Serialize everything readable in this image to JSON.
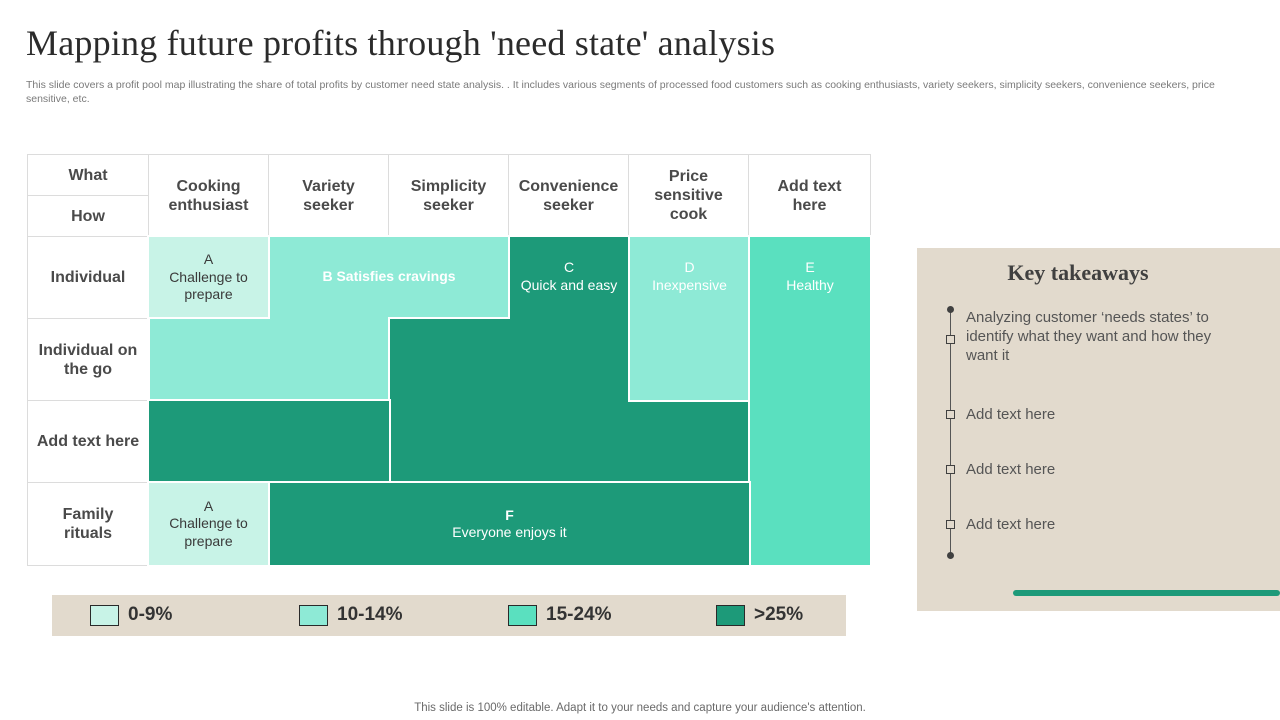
{
  "title": "Mapping future profits through 'need state' analysis",
  "subtitle": "This slide covers a profit pool map illustrating the share of total profits by customer need state analysis. . It includes various segments of processed food customers such as cooking enthusiasts, variety seekers, simplicity seekers, convenience seekers, price sensitive, etc.",
  "grid": {
    "corner_what": "What",
    "corner_how": "How",
    "columns": [
      "Cooking enthusiast",
      "Variety seeker",
      "Simplicity seeker",
      "Convenience seeker",
      "Price sensitive cook",
      "Add text here"
    ],
    "rows": [
      "Individual",
      "Individual on the go",
      "Add text here",
      "Family rituals"
    ],
    "regions": {
      "a_top": {
        "letter": "A",
        "text": "Challenge to prepare",
        "share": "0-9%"
      },
      "b": {
        "text": "B Satisfies cravings",
        "share": "10-14%"
      },
      "c": {
        "letter": "C",
        "text": "Quick and easy",
        "share": ">25%"
      },
      "d": {
        "letter": "D",
        "text": "Inexpensive",
        "share": "10-14%"
      },
      "e": {
        "letter": "E",
        "text": "Healthy",
        "share": "15-24%"
      },
      "a_bottom": {
        "letter": "A",
        "text": "Challenge to prepare",
        "share": "0-9%"
      },
      "f": {
        "letter": "F",
        "text": "Everyone enjoys it",
        "share": ">25%"
      }
    }
  },
  "legend": [
    {
      "label": "0-9%",
      "color": "#c8f3e7"
    },
    {
      "label": "10-14%",
      "color": "#8eead6"
    },
    {
      "label": "15-24%",
      "color": "#5ae0bf"
    },
    {
      "label": ">25%",
      "color": "#1d9a79"
    }
  ],
  "takeaways": {
    "title": "Key takeaways",
    "items": [
      "Analyzing customer ‘needs states’ to identify what they want and how they want it",
      "Add text here",
      "Add text here",
      "Add text here"
    ]
  },
  "footer": "This slide is 100% editable. Adapt it to your needs and capture your audience's attention."
}
